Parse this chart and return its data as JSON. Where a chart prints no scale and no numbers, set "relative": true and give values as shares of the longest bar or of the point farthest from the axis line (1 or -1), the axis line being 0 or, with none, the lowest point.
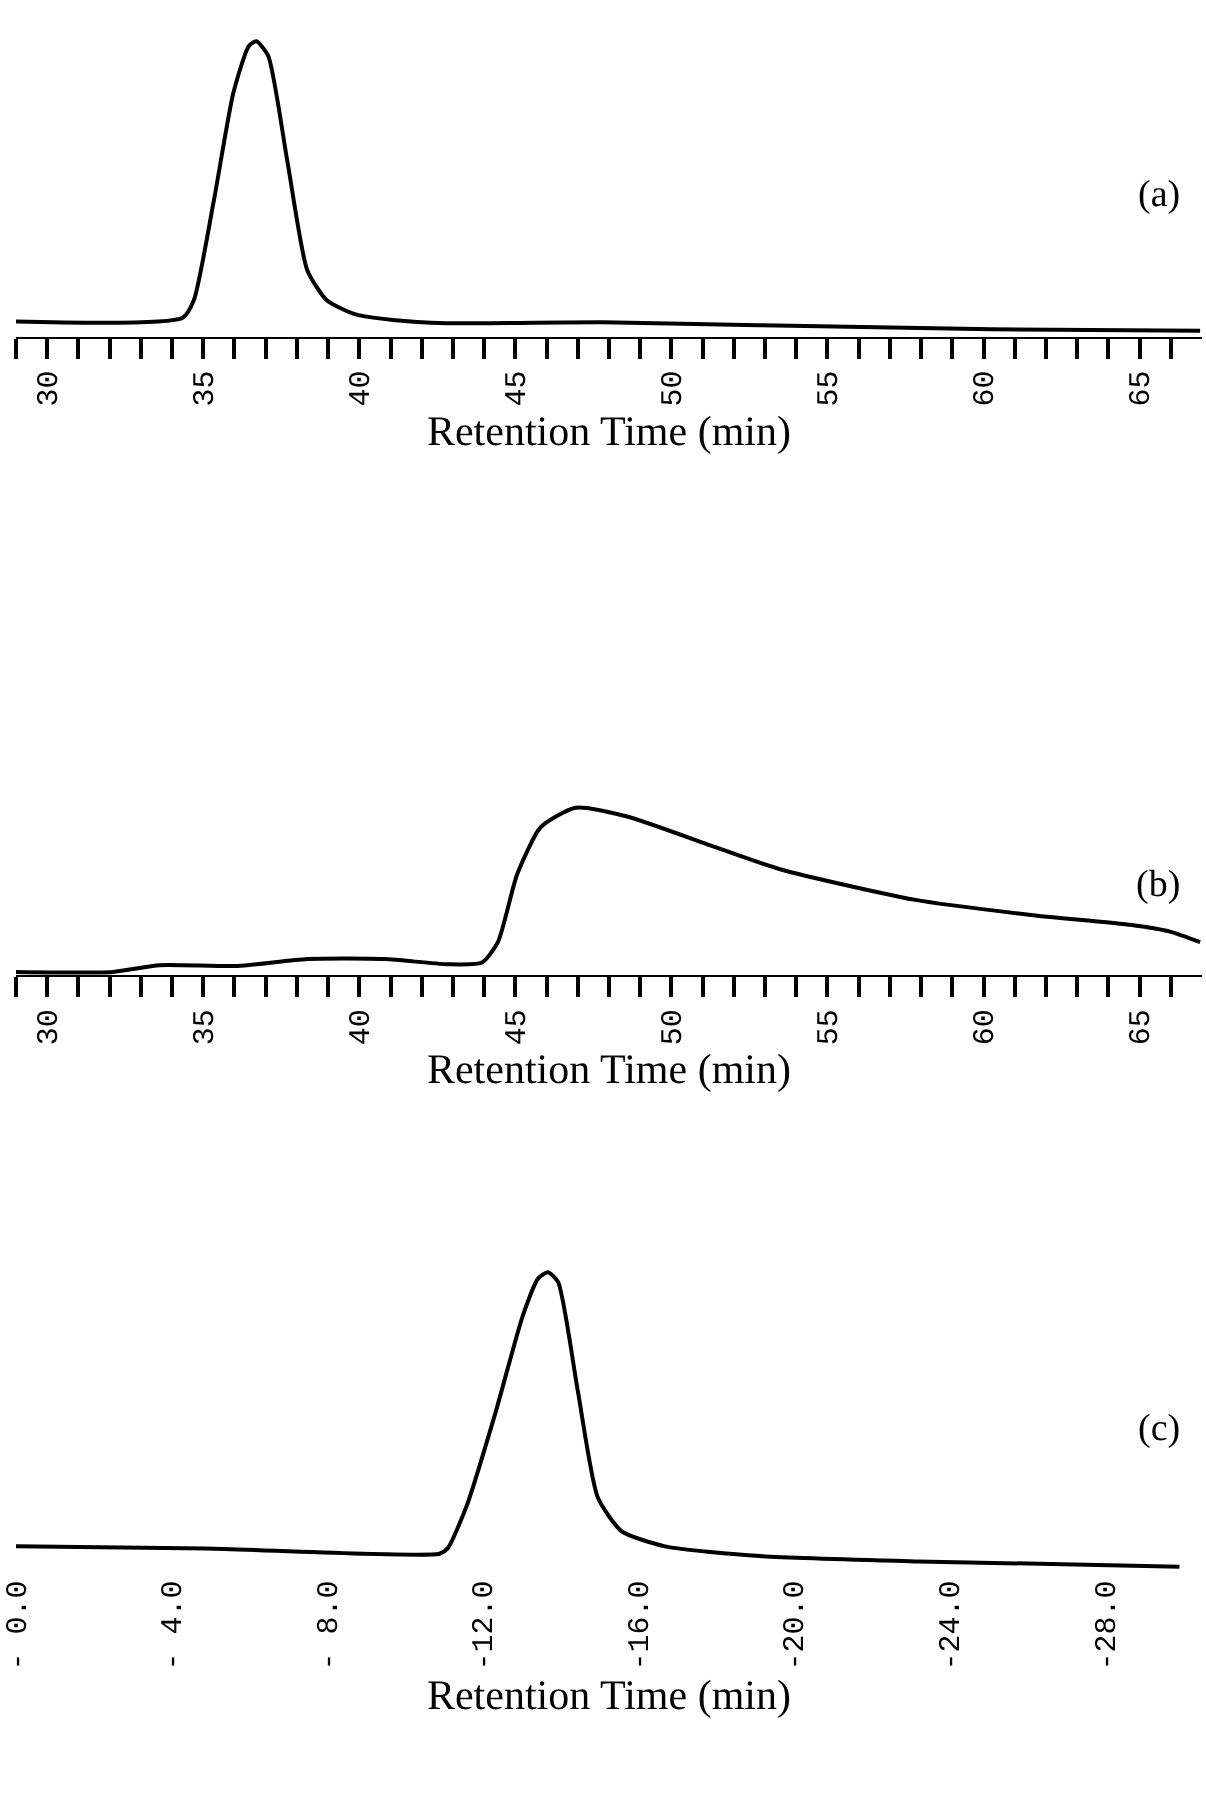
{
  "chart_data": [
    {
      "type": "line",
      "relative": true,
      "color": "#000000",
      "xlabel": "Retention Time (min)",
      "annotations": [
        "(a)"
      ],
      "x": [
        29,
        34.34,
        34.7,
        35.34,
        35.96,
        36.46,
        36.7,
        37.08,
        37.7,
        38.33,
        38.95,
        39.83,
        41.07,
        42.8,
        47.8,
        52.79,
        60.27,
        66.94
      ],
      "values": [
        0.032,
        0.045,
        0.106,
        0.45,
        0.82,
        0.984,
        1,
        0.95,
        0.582,
        0.21,
        0.106,
        0.058,
        0.037,
        0.026,
        0.029,
        0.019,
        0.005,
        0
      ],
      "xlim": [
        29,
        67
      ],
      "xticks": [
        {
          "value": 29,
          "label": null
        },
        30,
        {
          "value": 31,
          "label": null
        },
        {
          "value": 32,
          "label": null
        },
        {
          "value": 33,
          "label": null
        },
        {
          "value": 34,
          "label": null
        },
        35,
        {
          "value": 36,
          "label": null
        },
        {
          "value": 37,
          "label": null
        },
        {
          "value": 38,
          "label": null
        },
        {
          "value": 39,
          "label": null
        },
        40,
        {
          "value": 41,
          "label": null
        },
        {
          "value": 42,
          "label": null
        },
        {
          "value": 43,
          "label": null
        },
        {
          "value": 44,
          "label": null
        },
        45,
        {
          "value": 46,
          "label": null
        },
        {
          "value": 47,
          "label": null
        },
        {
          "value": 48,
          "label": null
        },
        {
          "value": 49,
          "label": null
        },
        50,
        {
          "value": 51,
          "label": null
        },
        {
          "value": 52,
          "label": null
        },
        {
          "value": 53,
          "label": null
        },
        {
          "value": 54,
          "label": null
        },
        55,
        {
          "value": 56,
          "label": null
        },
        {
          "value": 57,
          "label": null
        },
        {
          "value": 58,
          "label": null
        },
        {
          "value": 59,
          "label": null
        },
        60,
        {
          "value": 61,
          "label": null
        },
        {
          "value": 62,
          "label": null
        },
        {
          "value": 63,
          "label": null
        },
        {
          "value": 64,
          "label": null
        },
        65,
        {
          "value": 66,
          "label": null
        }
      ]
    },
    {
      "type": "line",
      "relative": true,
      "color": "#000000",
      "xlabel": "Retention Time (min)",
      "annotations": [
        "(b)"
      ],
      "x": [
        29,
        32.1,
        33.6,
        36.09,
        38.33,
        40.82,
        42.8,
        43.93,
        44.44,
        45.06,
        45.81,
        46.93,
        48.55,
        51.54,
        53.54,
        57.77,
        61.51,
        64.75,
        66.0,
        66.94
      ],
      "values": [
        0,
        0,
        0.041,
        0.036,
        0.078,
        0.078,
        0.047,
        0.057,
        0.181,
        0.596,
        0.881,
        1,
        0.948,
        0.751,
        0.622,
        0.44,
        0.347,
        0.285,
        0.244,
        0.181
      ],
      "xlim": [
        29,
        67
      ],
      "xticks": [
        {
          "value": 29,
          "label": null
        },
        30,
        {
          "value": 31,
          "label": null
        },
        {
          "value": 32,
          "label": null
        },
        {
          "value": 33,
          "label": null
        },
        {
          "value": 34,
          "label": null
        },
        35,
        {
          "value": 36,
          "label": null
        },
        {
          "value": 37,
          "label": null
        },
        {
          "value": 38,
          "label": null
        },
        {
          "value": 39,
          "label": null
        },
        40,
        {
          "value": 41,
          "label": null
        },
        {
          "value": 42,
          "label": null
        },
        {
          "value": 43,
          "label": null
        },
        {
          "value": 44,
          "label": null
        },
        45,
        {
          "value": 46,
          "label": null
        },
        {
          "value": 47,
          "label": null
        },
        {
          "value": 48,
          "label": null
        },
        {
          "value": 49,
          "label": null
        },
        50,
        {
          "value": 51,
          "label": null
        },
        {
          "value": 52,
          "label": null
        },
        {
          "value": 53,
          "label": null
        },
        {
          "value": 54,
          "label": null
        },
        55,
        {
          "value": 56,
          "label": null
        },
        {
          "value": 57,
          "label": null
        },
        {
          "value": 58,
          "label": null
        },
        {
          "value": 59,
          "label": null
        },
        60,
        {
          "value": 61,
          "label": null
        },
        {
          "value": 62,
          "label": null
        },
        {
          "value": 63,
          "label": null
        },
        {
          "value": 64,
          "label": null
        },
        65,
        {
          "value": 66,
          "label": null
        }
      ]
    },
    {
      "type": "line",
      "relative": true,
      "color": "#000000",
      "xlabel": "Retention Time (min)",
      "annotations": [
        "(c)"
      ],
      "x": [
        0,
        -4.89,
        -10.89,
        -11.1,
        -11.6,
        -12.32,
        -13.03,
        -13.43,
        -13.68,
        -13.94,
        -14.45,
        -14.96,
        -15.57,
        -16.69,
        -19.13,
        -23.2,
        -29.92
      ],
      "values": [
        0.069,
        0.062,
        0.044,
        0.062,
        0.21,
        0.518,
        0.851,
        0.979,
        1,
        0.967,
        0.595,
        0.236,
        0.121,
        0.069,
        0.036,
        0.018,
        0
      ],
      "xlim": [
        0,
        -30.5
      ],
      "xticks": [
        {
          "value": 0,
          "label": "- 0.0"
        },
        {
          "value": -4,
          "label": "- 4.0"
        },
        {
          "value": -8,
          "label": "- 8.0"
        },
        {
          "value": -12,
          "label": "-12.0"
        },
        {
          "value": -16,
          "label": "-16.0"
        },
        {
          "value": -20,
          "label": "-20.0"
        },
        {
          "value": -24,
          "label": "-24.0"
        },
        {
          "value": -28,
          "label": "-28.0"
        }
      ]
    }
  ]
}
